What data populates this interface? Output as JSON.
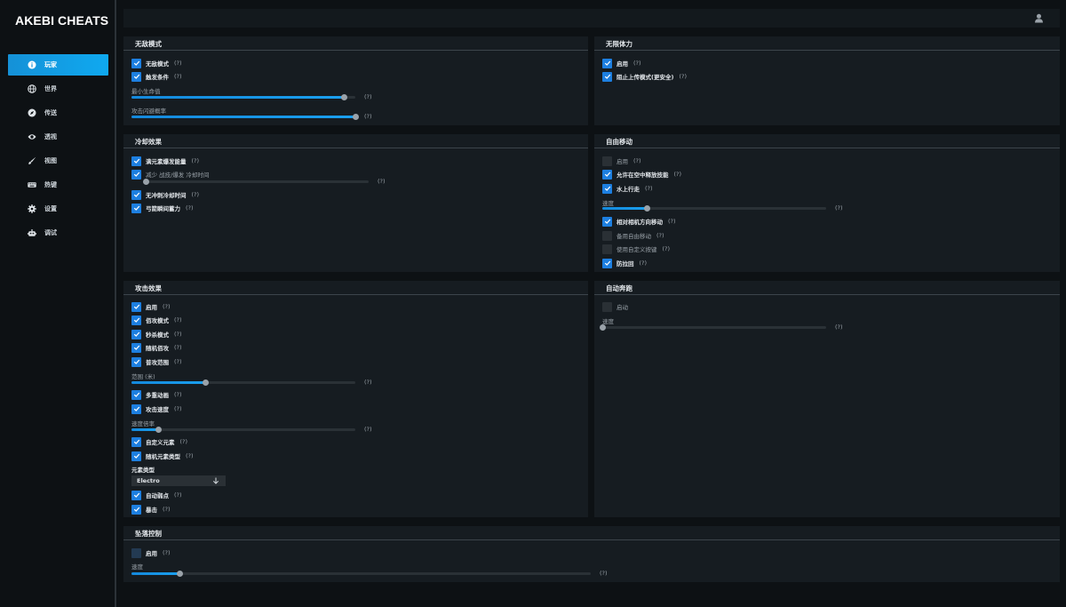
{
  "app": {
    "title": "AKEBI CHEATS"
  },
  "sidebar": {
    "items": [
      {
        "label": "玩家",
        "icon": "info-icon",
        "active": true
      },
      {
        "label": "世界",
        "icon": "globe-icon"
      },
      {
        "label": "传送",
        "icon": "compass-icon"
      },
      {
        "label": "透视",
        "icon": "eye-icon"
      },
      {
        "label": "视图",
        "icon": "brush-icon"
      },
      {
        "label": "热键",
        "icon": "keyboard-icon"
      },
      {
        "label": "设置",
        "icon": "gear-icon"
      },
      {
        "label": "调试",
        "icon": "debug-icon"
      }
    ]
  },
  "help": "(?)",
  "panels": {
    "godmode": {
      "title": "无敌模式",
      "godmode": {
        "label": "无敌模式",
        "checked": true
      },
      "trigger": {
        "label": "触发条件",
        "checked": true
      },
      "min_hp": {
        "label": "最小生命值",
        "value": 0.95
      },
      "dodge_rate": {
        "label": "攻击闪避概率",
        "value": 1.0
      }
    },
    "stamina": {
      "title": "无限体力",
      "enable": {
        "label": "启用",
        "checked": true
      },
      "block_upload": {
        "label": "阻止上传模式(更安全)",
        "checked": true
      }
    },
    "cooldown": {
      "title": "冷却效果",
      "burst_energy": {
        "label": "满元素爆发能量",
        "checked": true
      },
      "reduce_cd": {
        "label": "减少 战技/爆发 冷却时间",
        "checked": true,
        "value": 0.0
      },
      "no_sprint_cd": {
        "label": "无冲刺冷却时间",
        "checked": true
      },
      "instant_bow": {
        "label": "弓箭瞬间蓄力",
        "checked": true
      }
    },
    "freemove": {
      "title": "自由移动",
      "enable": {
        "label": "启用",
        "checked": false
      },
      "air_skill": {
        "label": "允许在空中释放技能",
        "checked": true
      },
      "water_walk": {
        "label": "水上行走",
        "checked": true
      },
      "speed": {
        "label": "速度",
        "value": 0.2
      },
      "camera_rel": {
        "label": "相对相机方向移动",
        "checked": true
      },
      "alt_move": {
        "label": "备用自由移动",
        "checked": false
      },
      "custom_keys": {
        "label": "使用自定义按键",
        "checked": false
      },
      "anti_pullback": {
        "label": "防拉回",
        "checked": true
      }
    },
    "attack": {
      "title": "攻击效果",
      "enable": {
        "label": "启用",
        "checked": true
      },
      "dmg_mode": {
        "label": "佰攻模式",
        "checked": true
      },
      "kill_mode": {
        "label": "秒杀模式",
        "checked": true
      },
      "random_dmg": {
        "label": "随机佰攻",
        "checked": true
      },
      "aoe": {
        "label": "普攻范围",
        "checked": true
      },
      "range": {
        "label": "范围 (米)",
        "value": 0.33
      },
      "multi_anim": {
        "label": "多重动画",
        "checked": true
      },
      "atk_speed": {
        "label": "攻击速度",
        "checked": true
      },
      "speed_mult": {
        "label": "速度倍率",
        "value": 0.12
      },
      "custom_elem": {
        "label": "自定义元素",
        "checked": true
      },
      "random_elem": {
        "label": "随机元素类型",
        "checked": true
      },
      "elem_type": {
        "label": "元素类型",
        "value": "Electro"
      },
      "auto_weak": {
        "label": "自动弱点",
        "checked": true
      },
      "crit": {
        "label": "暴击",
        "checked": true
      }
    },
    "autorun": {
      "title": "自动奔跑",
      "enable": {
        "label": "启动",
        "checked": false
      },
      "speed": {
        "label": "速度",
        "value": 0.0
      }
    },
    "fall": {
      "title": "坠落控制",
      "enable": {
        "label": "启用",
        "checked": false
      },
      "speed": {
        "label": "速度",
        "value": 0.105
      }
    }
  },
  "colors": {
    "accent": "#1d7fe0",
    "active_nav": "#0fa9f0",
    "panel": "#161c21",
    "background": "#0d1114"
  }
}
